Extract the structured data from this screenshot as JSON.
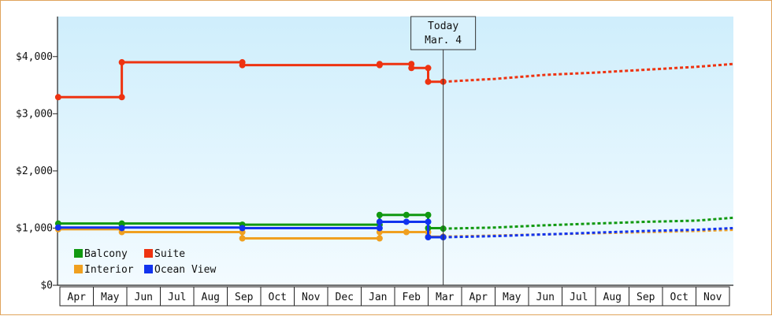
{
  "chart_data": {
    "type": "line",
    "title": "",
    "xlabel": "",
    "ylabel": "",
    "ylim": [
      0,
      4700
    ],
    "y_ticks": [
      {
        "value": 0,
        "label": "$0"
      },
      {
        "value": 1000,
        "label": "$1,000"
      },
      {
        "value": 2000,
        "label": "$2,000"
      },
      {
        "value": 3000,
        "label": "$3,000"
      },
      {
        "value": 4000,
        "label": "$4,000"
      }
    ],
    "x_months": [
      "Apr",
      "May",
      "Jun",
      "Jul",
      "Aug",
      "Sep",
      "Oct",
      "Nov",
      "Dec",
      "Jan",
      "Feb",
      "Mar",
      "Apr",
      "May",
      "Jun",
      "Jul",
      "Aug",
      "Sep",
      "Oct",
      "Nov"
    ],
    "grid": false,
    "legend_position": "bottom-left",
    "today": {
      "line1": "Today",
      "line2": "Mar. 4",
      "x": 11.45
    },
    "series": [
      {
        "name": "Balcony",
        "color": "#119911",
        "historic": [
          [
            -0.05,
            1080
          ],
          [
            1.85,
            1080
          ],
          [
            5.45,
            1060
          ],
          [
            9.55,
            1060
          ],
          [
            9.55,
            1230
          ],
          [
            10.35,
            1230
          ],
          [
            11.0,
            1230
          ],
          [
            11.0,
            1000
          ],
          [
            11.45,
            990
          ]
        ],
        "markers": [
          [
            -0.05,
            1080
          ],
          [
            1.85,
            1080
          ],
          [
            1.85,
            1060
          ],
          [
            5.45,
            1060
          ],
          [
            9.55,
            1060
          ],
          [
            9.55,
            1230
          ],
          [
            10.35,
            1230
          ],
          [
            11.0,
            1230
          ],
          [
            11.0,
            1000
          ],
          [
            11.45,
            990
          ]
        ],
        "forecast": [
          [
            11.45,
            990
          ],
          [
            13,
            1010
          ],
          [
            14.5,
            1050
          ],
          [
            16,
            1080
          ],
          [
            17.5,
            1110
          ],
          [
            19,
            1130
          ],
          [
            20.1,
            1180
          ]
        ]
      },
      {
        "name": "Suite",
        "color": "#ee3311",
        "historic": [
          [
            -0.05,
            3290
          ],
          [
            1.85,
            3290
          ],
          [
            1.85,
            3900
          ],
          [
            5.45,
            3900
          ],
          [
            5.45,
            3850
          ],
          [
            9.55,
            3850
          ],
          [
            9.55,
            3870
          ],
          [
            10.5,
            3870
          ],
          [
            10.5,
            3800
          ],
          [
            11.0,
            3800
          ],
          [
            11.0,
            3560
          ],
          [
            11.45,
            3560
          ]
        ],
        "markers": [
          [
            -0.05,
            3290
          ],
          [
            1.85,
            3290
          ],
          [
            1.85,
            3900
          ],
          [
            5.45,
            3900
          ],
          [
            5.45,
            3850
          ],
          [
            9.55,
            3850
          ],
          [
            9.55,
            3870
          ],
          [
            10.5,
            3870
          ],
          [
            10.5,
            3800
          ],
          [
            11.0,
            3800
          ],
          [
            11.0,
            3560
          ],
          [
            11.45,
            3560
          ]
        ],
        "forecast": [
          [
            11.45,
            3560
          ],
          [
            13,
            3610
          ],
          [
            14.5,
            3680
          ],
          [
            16,
            3720
          ],
          [
            17.5,
            3770
          ],
          [
            19,
            3820
          ],
          [
            20.1,
            3870
          ]
        ]
      },
      {
        "name": "Interior",
        "color": "#f0a020",
        "historic": [
          [
            -0.05,
            980
          ],
          [
            1.85,
            980
          ],
          [
            1.85,
            930
          ],
          [
            5.45,
            930
          ],
          [
            5.45,
            820
          ],
          [
            9.55,
            820
          ],
          [
            9.55,
            930
          ],
          [
            10.35,
            930
          ],
          [
            11.0,
            930
          ],
          [
            11.0,
            850
          ],
          [
            11.45,
            850
          ]
        ],
        "markers": [
          [
            -0.05,
            980
          ],
          [
            1.85,
            930
          ],
          [
            5.45,
            930
          ],
          [
            5.45,
            820
          ],
          [
            9.55,
            820
          ],
          [
            9.55,
            930
          ],
          [
            10.35,
            930
          ],
          [
            11.0,
            930
          ],
          [
            11.0,
            850
          ],
          [
            11.45,
            850
          ]
        ],
        "forecast": [
          [
            11.45,
            850
          ],
          [
            13,
            870
          ],
          [
            14.5,
            890
          ],
          [
            16,
            910
          ],
          [
            17.5,
            930
          ],
          [
            19,
            950
          ],
          [
            20.1,
            970
          ]
        ]
      },
      {
        "name": "Ocean View",
        "color": "#1133ee",
        "historic": [
          [
            -0.05,
            1010
          ],
          [
            1.85,
            1010
          ],
          [
            5.45,
            1000
          ],
          [
            9.55,
            1000
          ],
          [
            9.55,
            1110
          ],
          [
            10.35,
            1110
          ],
          [
            11.0,
            1110
          ],
          [
            11.0,
            840
          ],
          [
            11.45,
            840
          ]
        ],
        "markers": [
          [
            -0.05,
            1010
          ],
          [
            1.85,
            1000
          ],
          [
            5.45,
            1000
          ],
          [
            9.55,
            1000
          ],
          [
            9.55,
            1110
          ],
          [
            10.35,
            1110
          ],
          [
            11.0,
            1110
          ],
          [
            11.0,
            840
          ],
          [
            11.45,
            840
          ]
        ],
        "forecast": [
          [
            11.45,
            840
          ],
          [
            13,
            860
          ],
          [
            14.5,
            890
          ],
          [
            16,
            920
          ],
          [
            17.5,
            950
          ],
          [
            19,
            970
          ],
          [
            20.1,
            1000
          ]
        ]
      }
    ]
  }
}
